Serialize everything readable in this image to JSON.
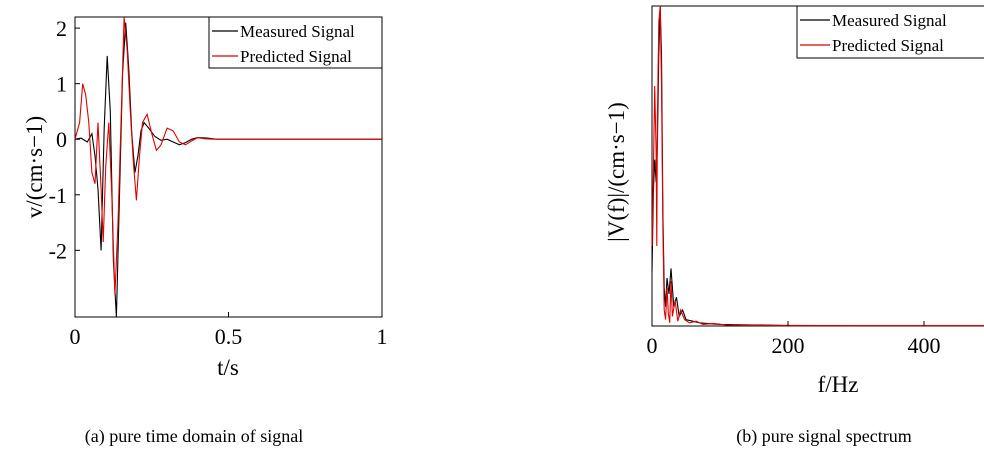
{
  "chart_data": [
    {
      "type": "line",
      "caption": "(a) pure time domain of signal",
      "xlabel": "t/s",
      "ylabel": "v/(cm·s−1)",
      "xlim": [
        0,
        1
      ],
      "ylim": [
        -3.2,
        2.2
      ],
      "xticks": [
        0,
        0.5,
        1
      ],
      "xtick_labels": [
        "0",
        "0.5",
        "1"
      ],
      "yticks": [
        2,
        1,
        0,
        -1,
        -2
      ],
      "ytick_labels": [
        "2",
        "1",
        "0",
        "-1",
        "-2"
      ],
      "grid": false,
      "legend": "top-right",
      "series": [
        {
          "name": "Measured Signal",
          "color": "#000000",
          "x": [
            0,
            0.02,
            0.04,
            0.055,
            0.065,
            0.075,
            0.085,
            0.095,
            0.105,
            0.115,
            0.125,
            0.135,
            0.145,
            0.155,
            0.165,
            0.175,
            0.185,
            0.195,
            0.205,
            0.215,
            0.225,
            0.24,
            0.26,
            0.28,
            0.3,
            0.32,
            0.34,
            0.36,
            0.38,
            0.4,
            0.43,
            0.46,
            0.5,
            1.0
          ],
          "y": [
            0,
            0.02,
            -0.05,
            0.1,
            -0.3,
            -0.9,
            -2.0,
            0.2,
            1.5,
            0.5,
            -2.2,
            -3.2,
            -1.0,
            1.2,
            2.1,
            1.3,
            0.1,
            -0.6,
            -0.3,
            0.15,
            0.3,
            0.2,
            0.05,
            -0.02,
            0.0,
            -0.05,
            -0.1,
            -0.06,
            0.0,
            0.03,
            0.02,
            0.0,
            0.0,
            0.0
          ]
        },
        {
          "name": "Predicted Signal",
          "color": "#e00000",
          "x": [
            0,
            0.015,
            0.025,
            0.035,
            0.045,
            0.055,
            0.065,
            0.075,
            0.085,
            0.092,
            0.1,
            0.11,
            0.12,
            0.13,
            0.14,
            0.15,
            0.16,
            0.17,
            0.18,
            0.19,
            0.2,
            0.21,
            0.22,
            0.235,
            0.25,
            0.265,
            0.28,
            0.3,
            0.32,
            0.34,
            0.36,
            0.38,
            0.4,
            0.42,
            0.45,
            0.5,
            1.0
          ],
          "y": [
            0,
            0.3,
            1.0,
            0.8,
            0.3,
            -0.6,
            -0.8,
            0.3,
            -0.9,
            -1.85,
            -0.5,
            0.3,
            -1.0,
            -2.8,
            -1.5,
            0.3,
            2.2,
            1.6,
            0.5,
            -0.4,
            -1.1,
            -0.3,
            0.3,
            0.45,
            0.1,
            -0.2,
            -0.1,
            0.2,
            0.15,
            -0.05,
            -0.1,
            -0.03,
            0.03,
            0.01,
            0.0,
            0.0,
            0.0
          ]
        }
      ]
    },
    {
      "type": "line",
      "caption": "(b) pure signal spectrum",
      "xlabel": "f/Hz",
      "ylabel": "|V(f)|/(cm·s−1)",
      "xlim": [
        0,
        500
      ],
      "ylim": [
        0,
        1.0
      ],
      "xticks": [
        0,
        200,
        400
      ],
      "xtick_labels": [
        "0",
        "200",
        "400"
      ],
      "yticks": [],
      "grid": false,
      "legend": "top-right",
      "series": [
        {
          "name": "Measured Signal",
          "color": "#000000",
          "x": [
            0,
            2,
            4,
            6,
            8,
            10,
            12,
            14,
            16,
            18,
            20,
            22,
            25,
            28,
            32,
            36,
            40,
            45,
            50,
            60,
            70,
            80,
            100,
            120,
            150,
            200,
            300,
            400,
            500
          ],
          "y": [
            0.17,
            0.42,
            0.52,
            0.45,
            0.57,
            0.85,
            1.0,
            0.85,
            0.35,
            0.12,
            0.06,
            0.15,
            0.1,
            0.18,
            0.06,
            0.09,
            0.03,
            0.05,
            0.02,
            0.015,
            0.01,
            0.008,
            0.005,
            0.004,
            0.003,
            0.002,
            0.001,
            0.001,
            0.001
          ]
        },
        {
          "name": "Predicted Signal",
          "color": "#e00000",
          "x": [
            0,
            2,
            4,
            6,
            7,
            8,
            10,
            12,
            14,
            16,
            18,
            20,
            22,
            24,
            26,
            28,
            30,
            34,
            38,
            42,
            48,
            55,
            65,
            75,
            90,
            110,
            140,
            200,
            300,
            400,
            500
          ],
          "y": [
            0.25,
            0.48,
            0.75,
            0.55,
            0.25,
            0.65,
            0.95,
            1.0,
            0.75,
            0.3,
            0.05,
            0.02,
            0.12,
            0.04,
            0.01,
            0.14,
            0.03,
            0.08,
            0.015,
            0.05,
            0.02,
            0.01,
            0.015,
            0.005,
            0.008,
            0.003,
            0.002,
            0.001,
            0.001,
            0.001,
            0.001
          ]
        }
      ]
    }
  ]
}
